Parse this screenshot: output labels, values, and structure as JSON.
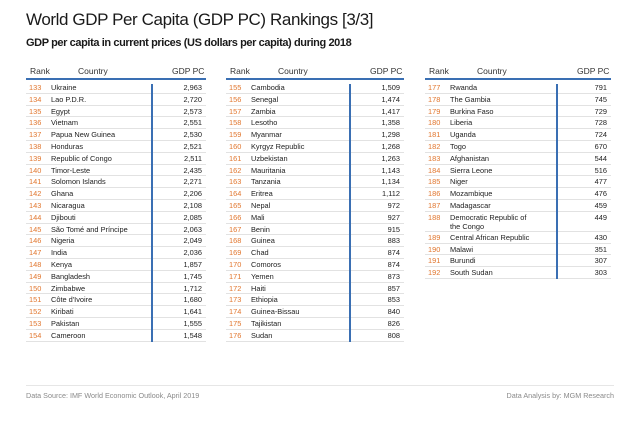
{
  "title": "World GDP Per Capita (GDP PC) Rankings [3/3]",
  "subtitle": "GDP per capita in current prices (US dollars per capita) during 2018",
  "footer": {
    "source": "Data Source: IMF World Economic Outlook, April 2019",
    "analysis": "Data Analysis by: MGM Research"
  },
  "colors": {
    "rank": "#e1762e",
    "accent": "#3a6fb3"
  },
  "chart_data": {
    "type": "table",
    "title": "World GDP Per Capita (GDP PC) Rankings [3/3]",
    "columns": [
      "Rank",
      "Country",
      "GDP PC"
    ],
    "rows": [
      {
        "rank": "133",
        "country": "Ukraine",
        "gdp": "2,963"
      },
      {
        "rank": "134",
        "country": "Lao P.D.R.",
        "gdp": "2,720"
      },
      {
        "rank": "135",
        "country": "Egypt",
        "gdp": "2,573"
      },
      {
        "rank": "136",
        "country": "Vietnam",
        "gdp": "2,551"
      },
      {
        "rank": "137",
        "country": "Papua New Guinea",
        "gdp": "2,530"
      },
      {
        "rank": "138",
        "country": "Honduras",
        "gdp": "2,521"
      },
      {
        "rank": "139",
        "country": "Republic of Congo",
        "gdp": "2,511"
      },
      {
        "rank": "140",
        "country": "Timor-Leste",
        "gdp": "2,435"
      },
      {
        "rank": "141",
        "country": "Solomon Islands",
        "gdp": "2,271"
      },
      {
        "rank": "142",
        "country": "Ghana",
        "gdp": "2,206"
      },
      {
        "rank": "143",
        "country": "Nicaragua",
        "gdp": "2,108"
      },
      {
        "rank": "144",
        "country": "Djibouti",
        "gdp": "2,085"
      },
      {
        "rank": "145",
        "country": "São Tomé and Príncipe",
        "gdp": "2,063"
      },
      {
        "rank": "146",
        "country": "Nigeria",
        "gdp": "2,049"
      },
      {
        "rank": "147",
        "country": "India",
        "gdp": "2,036"
      },
      {
        "rank": "148",
        "country": "Kenya",
        "gdp": "1,857"
      },
      {
        "rank": "149",
        "country": "Bangladesh",
        "gdp": "1,745"
      },
      {
        "rank": "150",
        "country": "Zimbabwe",
        "gdp": "1,712"
      },
      {
        "rank": "151",
        "country": "Côte d'Ivoire",
        "gdp": "1,680"
      },
      {
        "rank": "152",
        "country": "Kiribati",
        "gdp": "1,641"
      },
      {
        "rank": "153",
        "country": "Pakistan",
        "gdp": "1,555"
      },
      {
        "rank": "154",
        "country": "Cameroon",
        "gdp": "1,548"
      },
      {
        "rank": "155",
        "country": "Cambodia",
        "gdp": "1,509"
      },
      {
        "rank": "156",
        "country": "Senegal",
        "gdp": "1,474"
      },
      {
        "rank": "157",
        "country": "Zambia",
        "gdp": "1,417"
      },
      {
        "rank": "158",
        "country": "Lesotho",
        "gdp": "1,358"
      },
      {
        "rank": "159",
        "country": "Myanmar",
        "gdp": "1,298"
      },
      {
        "rank": "160",
        "country": "Kyrgyz Republic",
        "gdp": "1,268"
      },
      {
        "rank": "161",
        "country": "Uzbekistan",
        "gdp": "1,263"
      },
      {
        "rank": "162",
        "country": "Mauritania",
        "gdp": "1,143"
      },
      {
        "rank": "163",
        "country": "Tanzania",
        "gdp": "1,134"
      },
      {
        "rank": "164",
        "country": "Eritrea",
        "gdp": "1,112"
      },
      {
        "rank": "165",
        "country": "Nepal",
        "gdp": "972"
      },
      {
        "rank": "166",
        "country": "Mali",
        "gdp": "927"
      },
      {
        "rank": "167",
        "country": "Benin",
        "gdp": "915"
      },
      {
        "rank": "168",
        "country": "Guinea",
        "gdp": "883"
      },
      {
        "rank": "169",
        "country": "Chad",
        "gdp": "874"
      },
      {
        "rank": "170",
        "country": "Comoros",
        "gdp": "874"
      },
      {
        "rank": "171",
        "country": "Yemen",
        "gdp": "873"
      },
      {
        "rank": "172",
        "country": "Haiti",
        "gdp": "857"
      },
      {
        "rank": "173",
        "country": "Ethiopia",
        "gdp": "853"
      },
      {
        "rank": "174",
        "country": "Guinea-Bissau",
        "gdp": "840"
      },
      {
        "rank": "175",
        "country": "Tajikistan",
        "gdp": "826"
      },
      {
        "rank": "176",
        "country": "Sudan",
        "gdp": "808"
      },
      {
        "rank": "177",
        "country": "Rwanda",
        "gdp": "791"
      },
      {
        "rank": "178",
        "country": "The Gambia",
        "gdp": "745"
      },
      {
        "rank": "179",
        "country": "Burkina Faso",
        "gdp": "729"
      },
      {
        "rank": "180",
        "country": "Liberia",
        "gdp": "728"
      },
      {
        "rank": "181",
        "country": "Uganda",
        "gdp": "724"
      },
      {
        "rank": "182",
        "country": "Togo",
        "gdp": "670"
      },
      {
        "rank": "183",
        "country": "Afghanistan",
        "gdp": "544"
      },
      {
        "rank": "184",
        "country": "Sierra Leone",
        "gdp": "516"
      },
      {
        "rank": "185",
        "country": "Niger",
        "gdp": "477"
      },
      {
        "rank": "186",
        "country": "Mozambique",
        "gdp": "476"
      },
      {
        "rank": "187",
        "country": "Madagascar",
        "gdp": "459"
      },
      {
        "rank": "188",
        "country": "Democratic Republic of the Congo",
        "gdp": "449"
      },
      {
        "rank": "189",
        "country": "Central African Republic",
        "gdp": "430"
      },
      {
        "rank": "190",
        "country": "Malawi",
        "gdp": "351"
      },
      {
        "rank": "191",
        "country": "Burundi",
        "gdp": "307"
      },
      {
        "rank": "192",
        "country": "South Sudan",
        "gdp": "303"
      }
    ]
  }
}
